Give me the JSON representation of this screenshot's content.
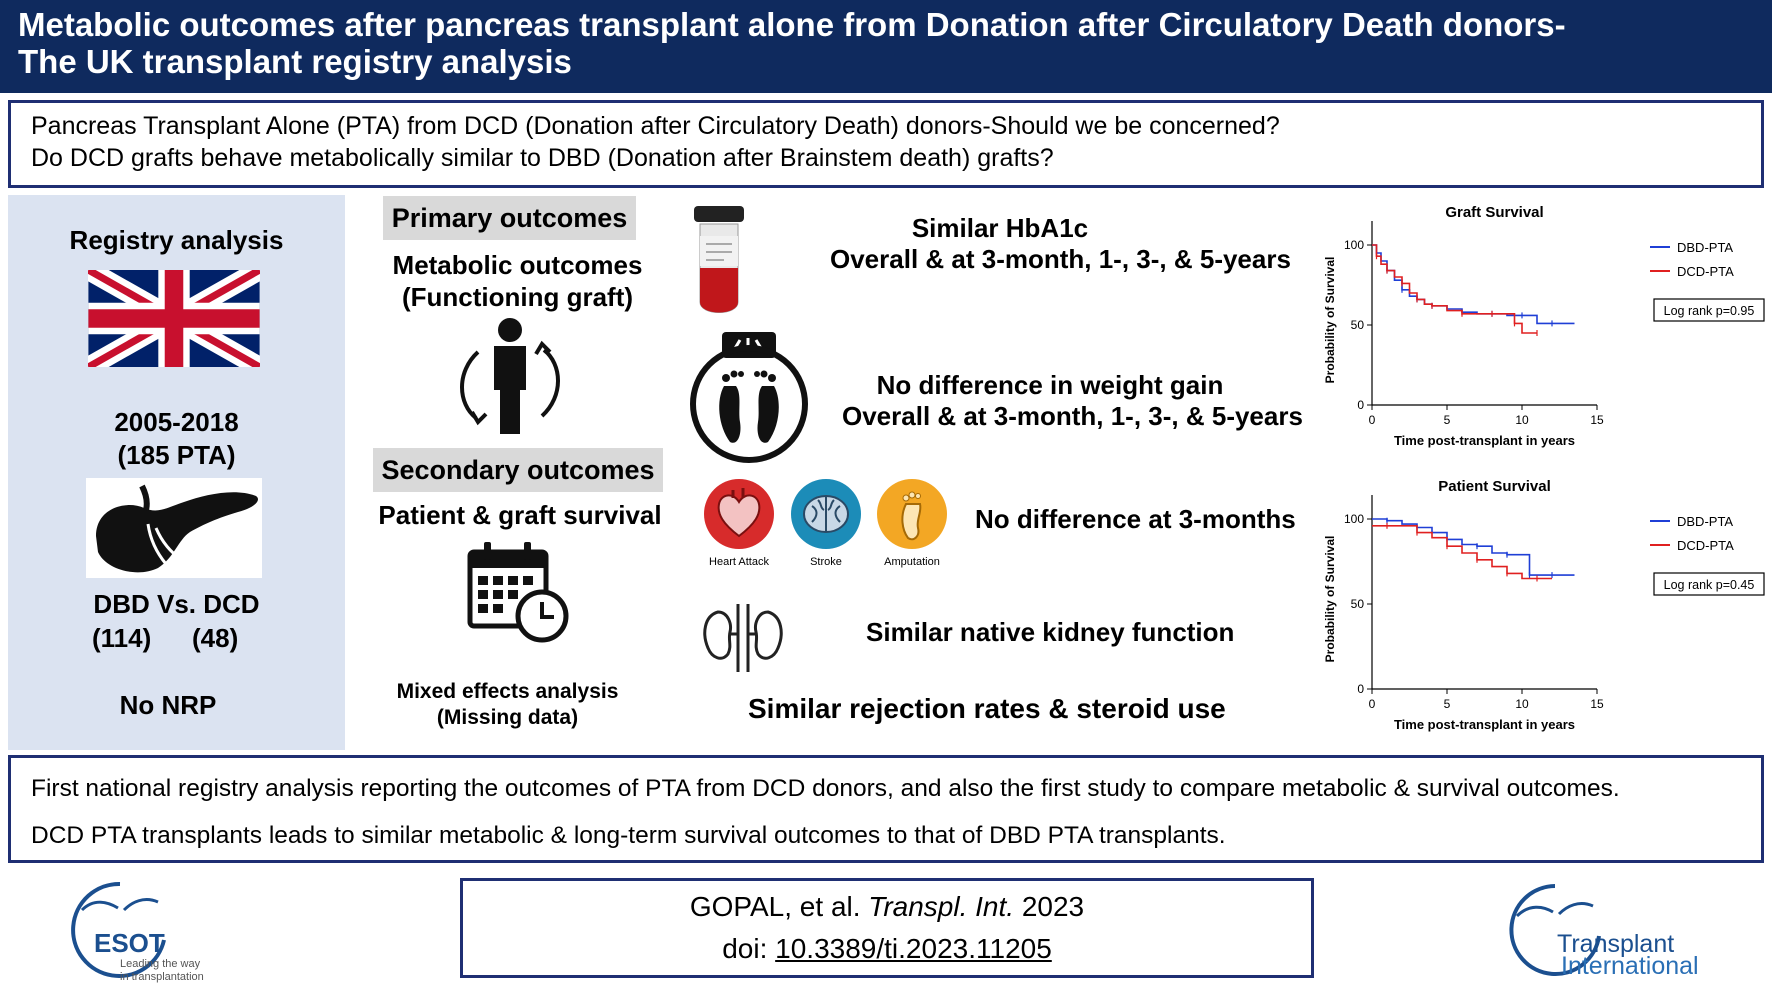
{
  "title": {
    "line1": "Metabolic outcomes after pancreas transplant alone from Donation after Circulatory Death donors-",
    "line2": "The UK transplant registry analysis"
  },
  "question": {
    "line1": "Pancreas Transplant Alone (PTA) from DCD (Donation after Circulatory Death) donors-Should we be concerned?",
    "line2": "Do DCD grafts behave metabolically similar to DBD (Donation after Brainstem death) grafts?"
  },
  "registry": {
    "heading": "Registry analysis",
    "years": "2005-2018",
    "count": "(185 PTA)",
    "comparison": "DBD Vs. DCD",
    "n_dbd": "(114)",
    "n_dcd": "(48)",
    "nrp": "No NRP"
  },
  "outcomes": {
    "primary_label": "Primary outcomes",
    "primary_line1": "Metabolic outcomes",
    "primary_line2": "(Functioning graft)",
    "secondary_label": "Secondary outcomes",
    "secondary_text": "Patient & graft survival",
    "method_line1": "Mixed effects analysis",
    "method_line2": "(Missing data)"
  },
  "findings": {
    "hba1c_line1": "Similar HbA1c",
    "hba1c_line2": "Overall & at 3-month, 1-, 3-, & 5-years",
    "weight_line1": "No difference in weight gain",
    "weight_line2": "Overall & at 3-month, 1-, 3-, & 5-years",
    "events": "No difference at 3-months",
    "event_labels": [
      "Heart Attack",
      "Stroke",
      "Amputation"
    ],
    "kidney": "Similar native kidney function",
    "rejection": "Similar  rejection  rates  &  steroid  use"
  },
  "chart_data": [
    {
      "type": "line",
      "title": "Graft Survival",
      "xlabel": "Time post-transplant in years",
      "ylabel": "Probability of Survival",
      "xlim": [
        0,
        15
      ],
      "ylim": [
        0,
        100
      ],
      "xticks": [
        0,
        5,
        10,
        15
      ],
      "yticks": [
        0,
        50,
        100
      ],
      "annotation": "Log rank p=0.95",
      "legend_position": "right",
      "series": [
        {
          "name": "DBD-PTA",
          "color": "#1f3fd6",
          "x": [
            0,
            0.3,
            0.6,
            1.0,
            1.5,
            2.0,
            2.5,
            3.0,
            3.5,
            4.0,
            5.0,
            6.0,
            7.0,
            8.0,
            9.0,
            10.0,
            11.0,
            12.0,
            13.5
          ],
          "y": [
            100,
            95,
            90,
            84,
            78,
            72,
            68,
            66,
            63,
            62,
            60,
            58,
            57,
            57,
            56,
            56,
            51,
            51,
            51
          ]
        },
        {
          "name": "DCD-PTA",
          "color": "#e02020",
          "x": [
            0,
            0.3,
            0.6,
            1.0,
            1.5,
            2.0,
            2.5,
            3.0,
            3.5,
            4.0,
            5.0,
            6.0,
            7.0,
            8.0,
            9.0,
            9.5,
            10.0,
            11.0
          ],
          "y": [
            100,
            93,
            88,
            84,
            80,
            76,
            70,
            66,
            63,
            62,
            59,
            57,
            57,
            57,
            57,
            51,
            45,
            45
          ]
        }
      ]
    },
    {
      "type": "line",
      "title": "Patient Survival",
      "xlabel": "Time post-transplant in years",
      "ylabel": "Probability of Survival",
      "xlim": [
        0,
        15
      ],
      "ylim": [
        0,
        100
      ],
      "xticks": [
        0,
        5,
        10,
        15
      ],
      "yticks": [
        0,
        50,
        100
      ],
      "annotation": "Log rank p=0.45",
      "legend_position": "right",
      "series": [
        {
          "name": "DBD-PTA",
          "color": "#1f3fd6",
          "x": [
            0,
            1.0,
            2.0,
            3.0,
            4.0,
            5.0,
            6.0,
            7.0,
            8.0,
            9.0,
            10.0,
            10.5,
            11.0,
            12.0,
            13.5
          ],
          "y": [
            100,
            99,
            97,
            95,
            92,
            88,
            85,
            84,
            80,
            79,
            79,
            67,
            67,
            67,
            67
          ]
        },
        {
          "name": "DCD-PTA",
          "color": "#e02020",
          "x": [
            0,
            1.0,
            2.0,
            3.0,
            4.0,
            5.0,
            6.0,
            7.0,
            8.0,
            9.0,
            10.0,
            11.0,
            12.0
          ],
          "y": [
            96,
            96,
            96,
            92,
            89,
            84,
            80,
            76,
            72,
            68,
            65,
            65,
            65
          ]
        }
      ]
    }
  ],
  "conclusions": {
    "line1": "First national  registry analysis reporting the outcomes of PTA from DCD donors, and also the first study to compare metabolic & survival outcomes.",
    "line2": "DCD PTA transplants leads to similar metabolic & long-term survival  outcomes to that of DBD PTA transplants."
  },
  "citation": {
    "authors": "GOPAL, et al. ",
    "journal": "Transpl. Int.",
    "year": " 2023",
    "doi_prefix": "doi: ",
    "doi": "10.3389/ti.2023.11205"
  },
  "logos": {
    "esot_name": "ESOT",
    "esot_tagline1": "Leading the way",
    "esot_tagline2": "in transplantation",
    "ti_line1": "Transplant",
    "ti_line2": "International"
  },
  "colors": {
    "navy": "#0f2a5e",
    "border": "#1f2f73",
    "panel": "#dbe3f1",
    "dbd": "#1f3fd6",
    "dcd": "#e02020",
    "esot_blue": "#1b4f8f",
    "ti_blue": "#2a6fb5"
  }
}
